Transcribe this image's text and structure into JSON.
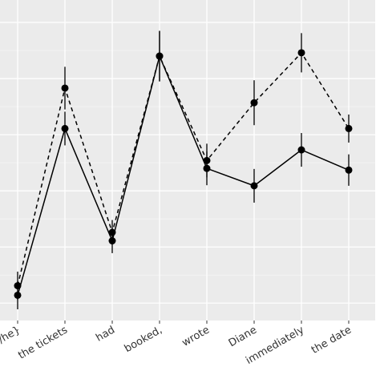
{
  "chart_data": {
    "type": "line",
    "categories": [
      "/he}",
      "the tickets",
      "had",
      "booked,",
      "wrote",
      "Diane",
      "immediately",
      "the date"
    ],
    "series": [
      {
        "color": "#000000",
        "dash": false,
        "values": [
          0.14,
          3.11,
          1.11,
          4.4,
          2.4,
          2.09,
          2.73,
          2.37
        ],
        "errors": [
          0.25,
          0.3,
          0.22,
          0.45,
          0.3,
          0.3,
          0.3,
          0.28
        ]
      },
      {
        "color": "#000000",
        "dash": true,
        "values": [
          0.31,
          3.83,
          1.26,
          4.4,
          2.54,
          3.57,
          4.46,
          3.11
        ],
        "errors": [
          0.25,
          0.38,
          0.22,
          0.45,
          0.3,
          0.4,
          0.35,
          0.25
        ]
      }
    ],
    "ylim": [
      -0.31,
      5.4
    ],
    "yticks": [
      0,
      1,
      2,
      3,
      4,
      5
    ],
    "grid": true
  }
}
